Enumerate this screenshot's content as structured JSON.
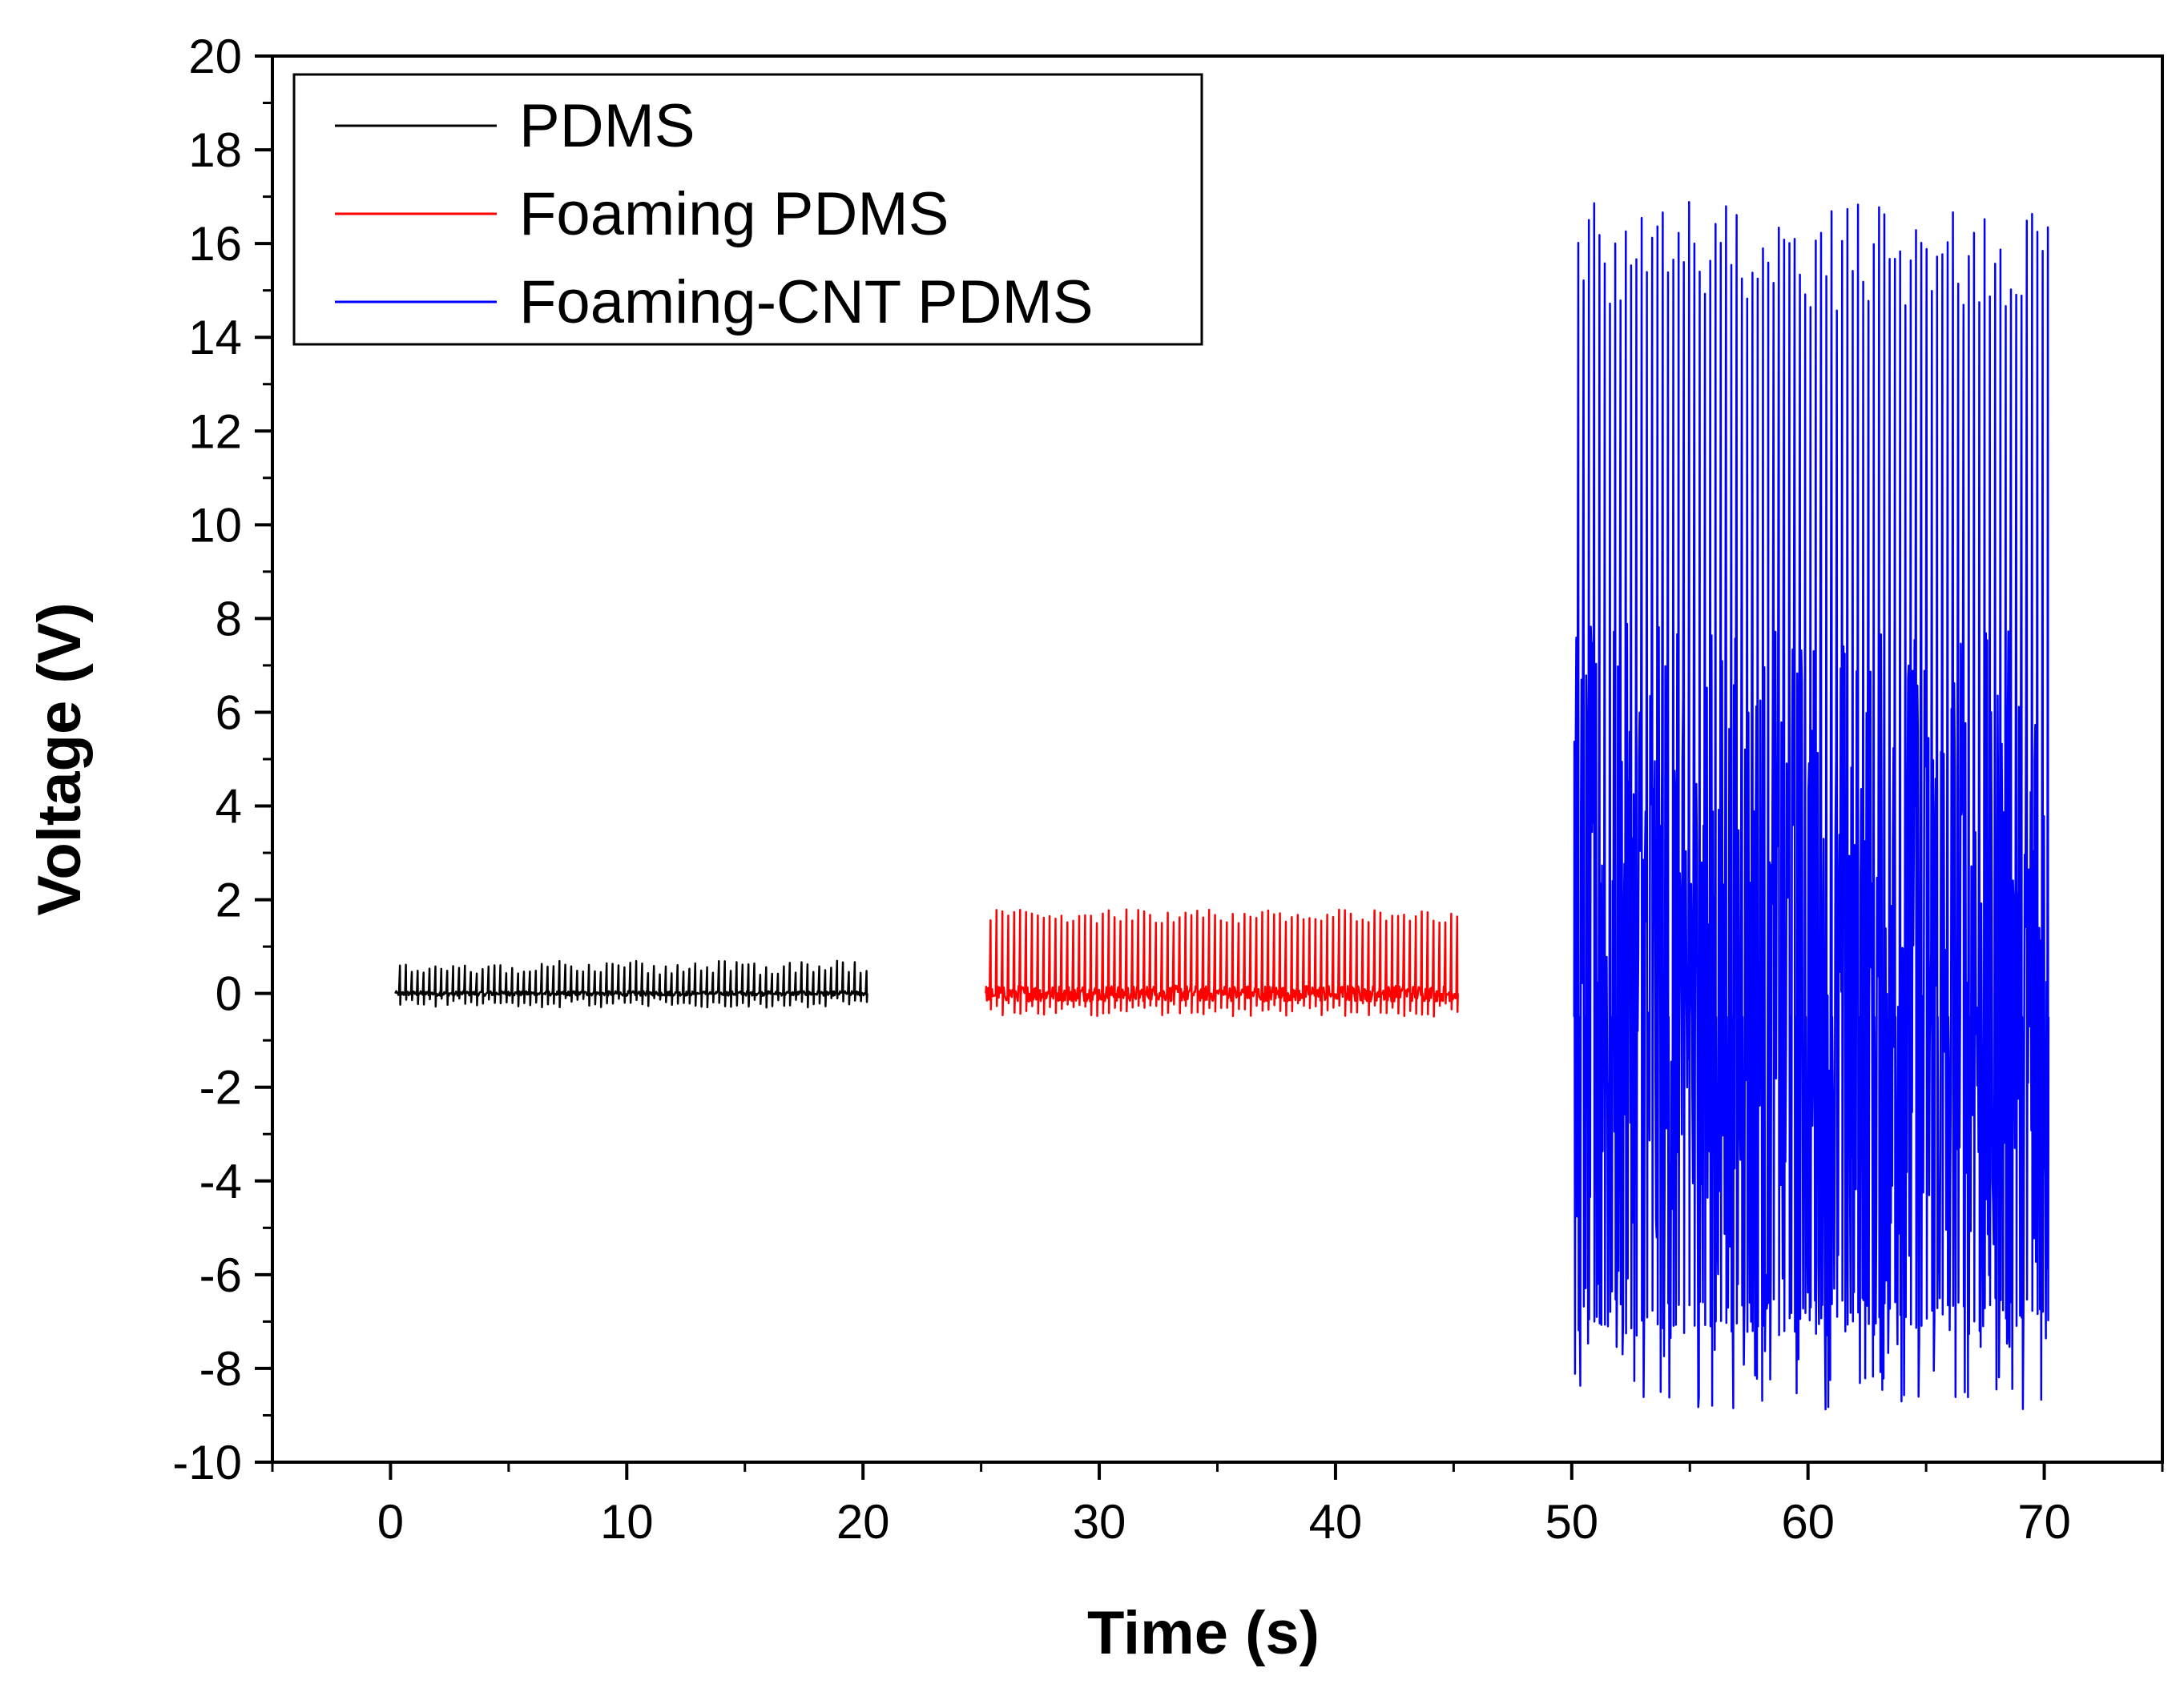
{
  "chart_data": {
    "type": "line",
    "title": "",
    "xlabel": "Time (s)",
    "ylabel": "Voltage (V)",
    "xlim": [
      -5,
      75
    ],
    "ylim": [
      -10,
      20
    ],
    "xticks": [
      0,
      10,
      20,
      30,
      40,
      50,
      60,
      70
    ],
    "xtick_labels": [
      "0",
      "10",
      "20",
      "30",
      "40",
      "50",
      "60",
      "70"
    ],
    "yticks": [
      -10,
      -8,
      -6,
      -4,
      -2,
      0,
      2,
      4,
      6,
      8,
      10,
      12,
      14,
      16,
      18,
      20
    ],
    "ytick_labels": [
      "-10",
      "-8",
      "-6",
      "-4",
      "-2",
      "0",
      "2",
      "4",
      "6",
      "8",
      "10",
      "12",
      "14",
      "16",
      "18",
      "20"
    ],
    "grid": false,
    "legend_position": "top-left",
    "series": [
      {
        "name": "PDMS",
        "color": "#000000",
        "t_start": 0.2,
        "t_end": 20.2,
        "pulses": 80,
        "peak_max": [
          0.4,
          0.7
        ],
        "peak_min": [
          -0.3,
          -0.1
        ],
        "baseline": 0.0
      },
      {
        "name": "Foaming PDMS",
        "color": "#ff0000",
        "t_start": 25.2,
        "t_end": 45.2,
        "pulses": 80,
        "peak_max": [
          1.5,
          1.8
        ],
        "peak_min": [
          -0.5,
          -0.2
        ],
        "baseline": 0.0
      },
      {
        "name": "Foaming-CNT PDMS",
        "color": "#0000ff",
        "t_start": 50.1,
        "t_end": 70.2,
        "pulses": 90,
        "peak_max": [
          14.5,
          16.9
        ],
        "peak_min": [
          -7.3,
          -6.5
        ],
        "baseline": -0.5
      }
    ]
  }
}
